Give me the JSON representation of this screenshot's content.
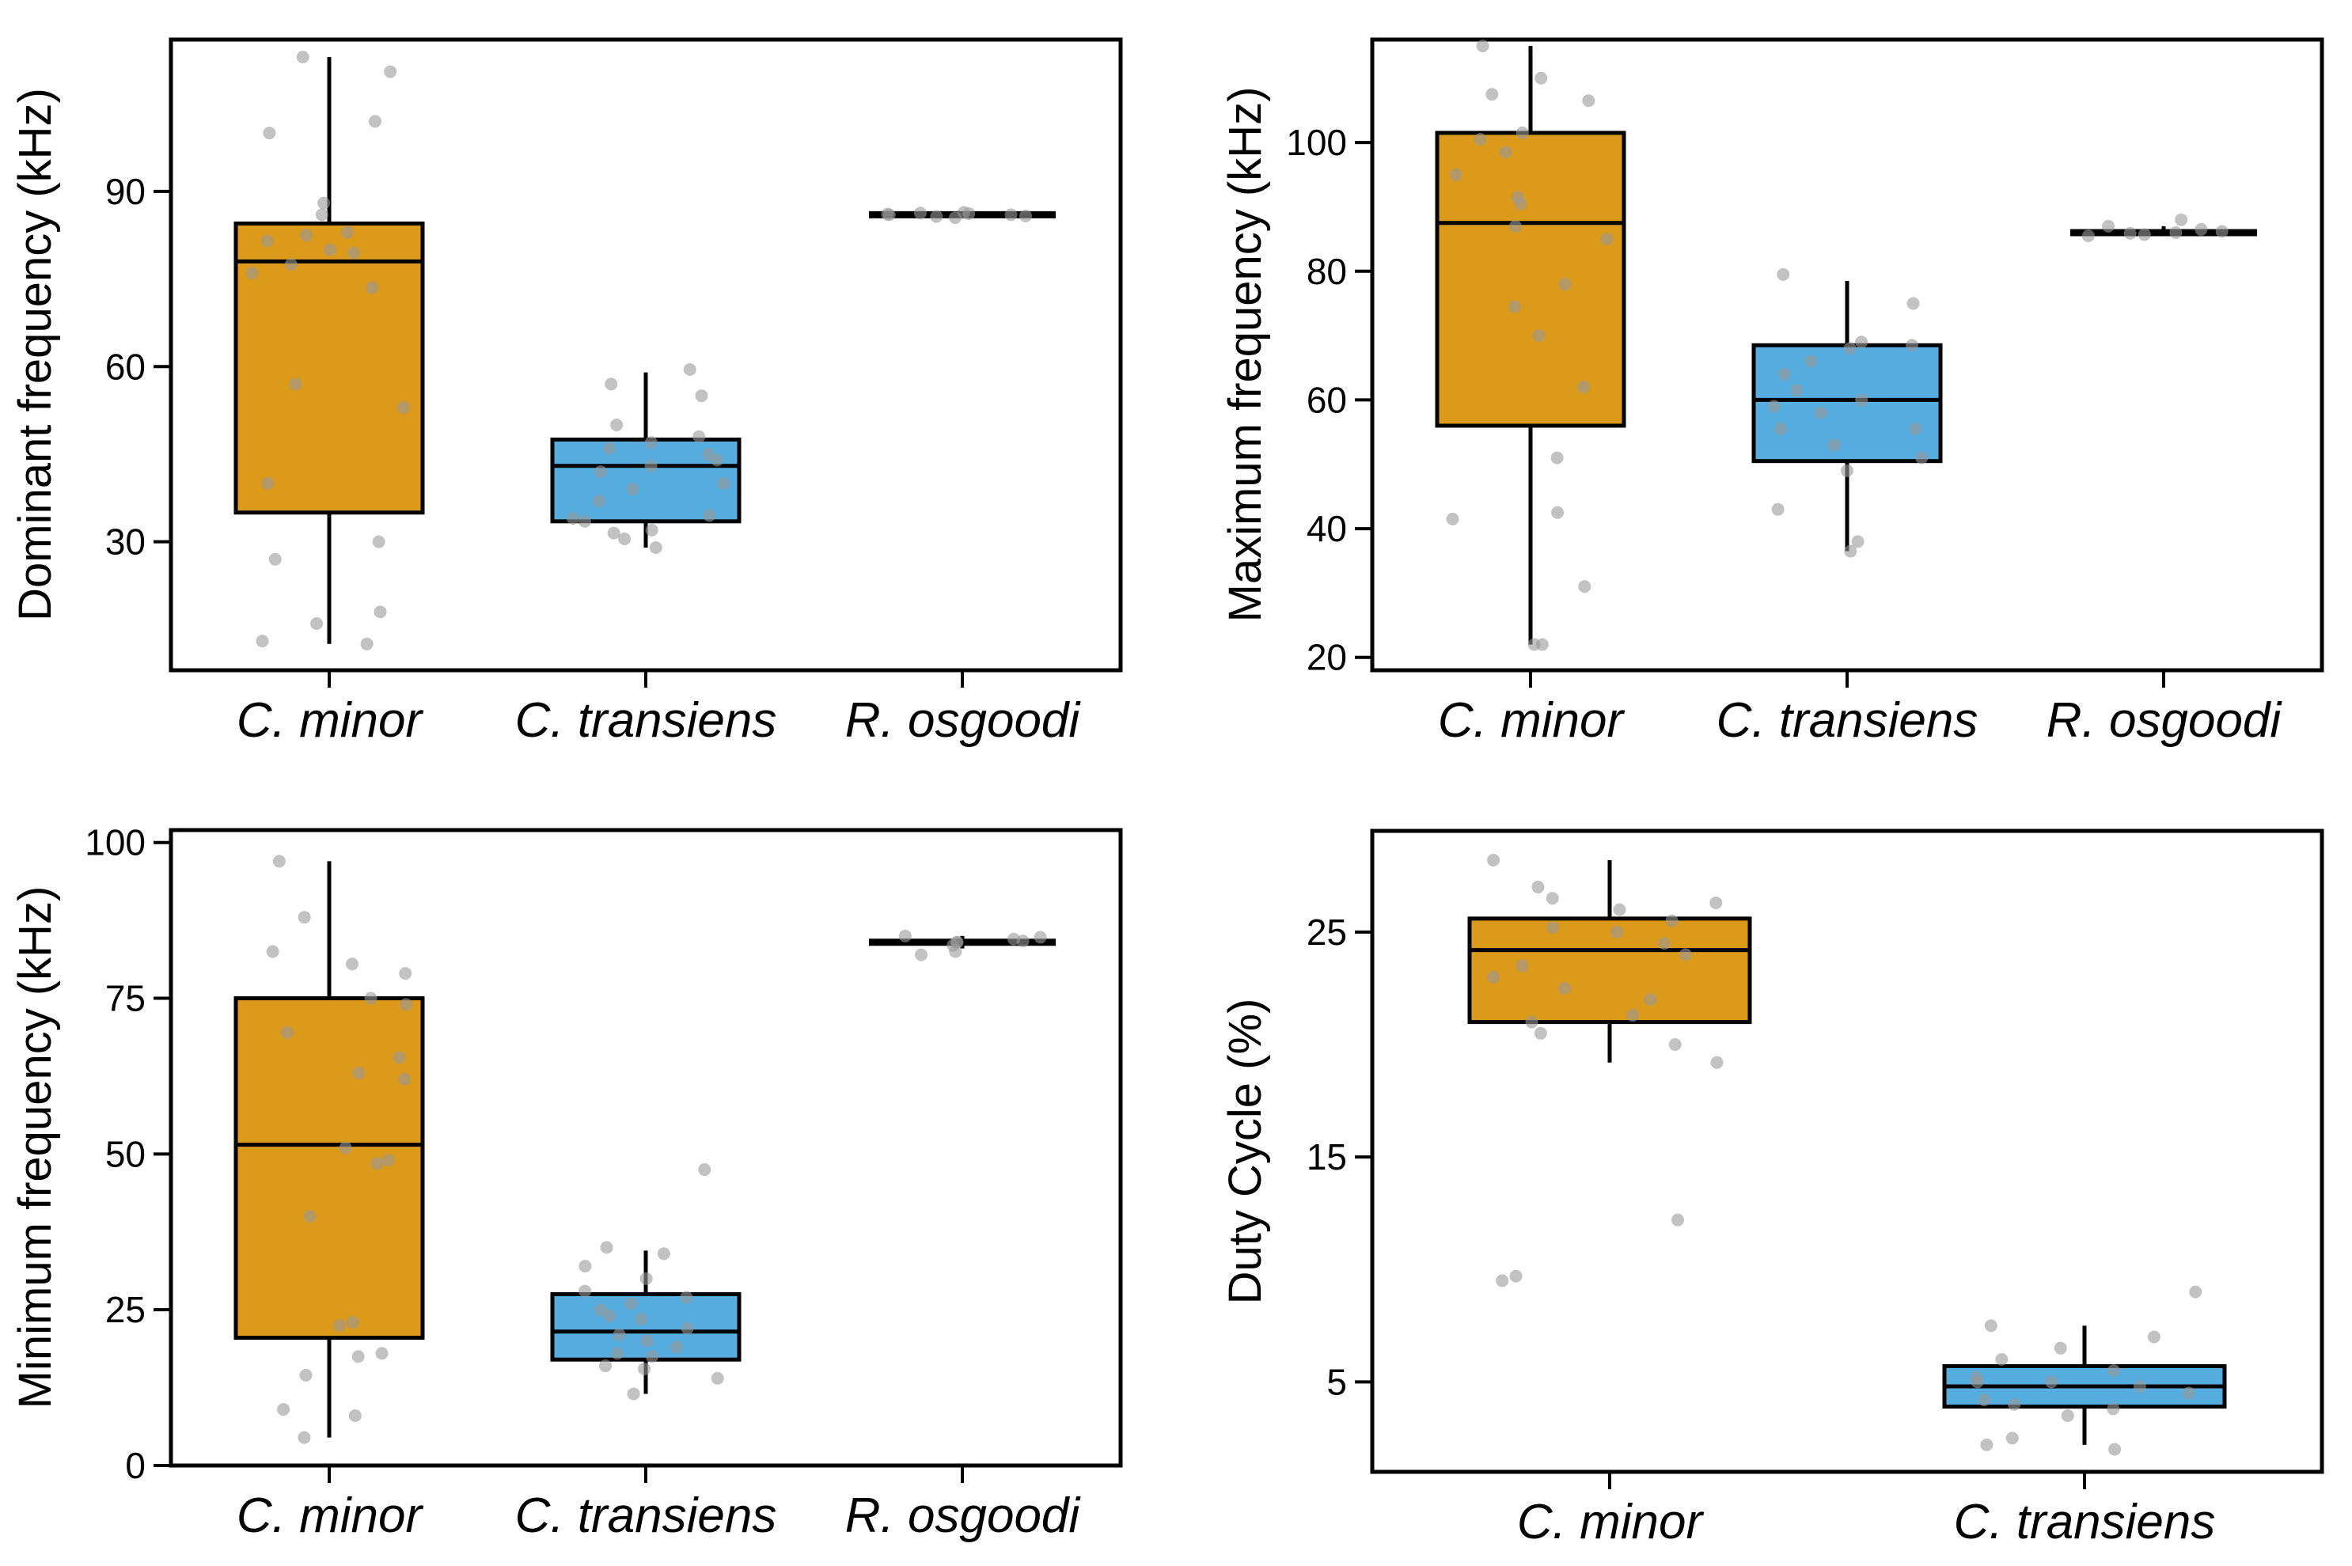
{
  "colors": {
    "orange": "#DB9A1A",
    "blue": "#56ADDF",
    "points": "#9A9A9A"
  },
  "chart_data": [
    {
      "type": "boxplot",
      "ylabel": "Dominant frequency (kHz)",
      "ylim": [
        8,
        116
      ],
      "yticks": [
        30,
        60,
        90
      ],
      "categories": [
        "C. minor",
        "C. transiens",
        "R. osgoodi"
      ],
      "boxes": [
        {
          "name": "C. minor",
          "color": "orange",
          "q1": 35,
          "median": 78,
          "q3": 84.5,
          "whisker_low": 12.5,
          "whisker_high": 113,
          "points": [
            12.5,
            13,
            16,
            18,
            27,
            30,
            40,
            53,
            57,
            73.5,
            76,
            77.5,
            79.5,
            80,
            81.5,
            82.5,
            83,
            86,
            88,
            100,
            102,
            110.5,
            113
          ]
        },
        {
          "name": "C. transiens",
          "color": "blue",
          "q1": 33.5,
          "median": 43,
          "q3": 47.5,
          "whisker_low": 29,
          "whisker_high": 59,
          "points": [
            29,
            30.5,
            31.5,
            32,
            33.5,
            34,
            34.5,
            37,
            39,
            40,
            42,
            43,
            44,
            45,
            46,
            47,
            48,
            50,
            55,
            57,
            59.5
          ]
        },
        {
          "name": "R. osgoodi",
          "color": "none",
          "q1": 85.6,
          "median": 86,
          "q3": 86.4,
          "whisker_low": 85.5,
          "whisker_high": 86.5,
          "points": [
            85.5,
            85.7,
            85.8,
            86,
            86,
            86.1,
            86.2,
            86.3,
            86.4
          ]
        }
      ]
    },
    {
      "type": "boxplot",
      "ylabel": "Maximum frequency (kHz)",
      "ylim": [
        18,
        116
      ],
      "yticks": [
        20,
        40,
        60,
        80,
        100
      ],
      "categories": [
        "C. minor",
        "C. transiens",
        "R. osgoodi"
      ],
      "boxes": [
        {
          "name": "C. minor",
          "color": "orange",
          "q1": 56,
          "median": 87.5,
          "q3": 101.5,
          "whisker_low": 22,
          "whisker_high": 115,
          "points": [
            22,
            22,
            31,
            41.5,
            42.5,
            51,
            62,
            70,
            74.5,
            78,
            85,
            87,
            90.5,
            91.5,
            95,
            98.5,
            100.5,
            101.5,
            106.5,
            107.5,
            110,
            115
          ]
        },
        {
          "name": "C. transiens",
          "color": "blue",
          "q1": 50.5,
          "median": 60,
          "q3": 68.5,
          "whisker_low": 36.5,
          "whisker_high": 78.5,
          "points": [
            36.5,
            38,
            43,
            49,
            51,
            53,
            55.5,
            55.5,
            58,
            59,
            60,
            61.5,
            64,
            66,
            68,
            68.5,
            69,
            75,
            79.5
          ]
        },
        {
          "name": "R. osgoodi",
          "color": "none",
          "q1": 85.6,
          "median": 86,
          "q3": 86.4,
          "whisker_low": 85.5,
          "whisker_high": 87,
          "points": [
            85.5,
            85.7,
            85.9,
            86,
            86.2,
            86.5,
            87,
            88
          ]
        }
      ]
    },
    {
      "type": "boxplot",
      "ylabel": "Minimum frequency (kHz)",
      "ylim": [
        0,
        102
      ],
      "yticks": [
        0,
        25,
        50,
        75,
        100
      ],
      "categories": [
        "C. minor",
        "C. transiens",
        "R. osgoodi"
      ],
      "boxes": [
        {
          "name": "C. minor",
          "color": "orange",
          "q1": 20.5,
          "median": 51.5,
          "q3": 75,
          "whisker_low": 4.5,
          "whisker_high": 97,
          "points": [
            4.5,
            8,
            9,
            14.5,
            17.5,
            18,
            22.5,
            23,
            40,
            48.5,
            49,
            51,
            62,
            63,
            65.5,
            69.5,
            74,
            75,
            79,
            80.5,
            82.5,
            88,
            97
          ]
        },
        {
          "name": "C. transiens",
          "color": "blue",
          "q1": 17,
          "median": 21.5,
          "q3": 27.5,
          "whisker_low": 11.5,
          "whisker_high": 34.5,
          "points": [
            11.5,
            14,
            15.5,
            16,
            17.5,
            18,
            19,
            20,
            21,
            22,
            23.5,
            24,
            25,
            26,
            27,
            28,
            30,
            32,
            34,
            35,
            47.5
          ]
        },
        {
          "name": "R. osgoodi",
          "color": "none",
          "q1": 83.6,
          "median": 84,
          "q3": 84.4,
          "whisker_low": 83,
          "whisker_high": 85,
          "points": [
            82,
            82.5,
            83.5,
            84,
            84,
            84.2,
            84.5,
            84.8,
            85
          ]
        }
      ]
    },
    {
      "type": "boxplot",
      "ylabel": "Duty Cycle (%)",
      "ylim": [
        1,
        29.5
      ],
      "yticks": [
        5,
        15,
        25
      ],
      "categories": [
        "C. minor",
        "C. transiens"
      ],
      "boxes": [
        {
          "name": "C. minor",
          "color": "orange",
          "q1": 21,
          "median": 24.2,
          "q3": 25.6,
          "whisker_low": 19.2,
          "whisker_high": 28.2,
          "points": [
            9.5,
            9.7,
            12.2,
            19.2,
            20,
            20.5,
            21,
            21.3,
            22,
            22.5,
            23,
            23.5,
            24,
            24.5,
            25,
            25.2,
            25.5,
            26,
            26.3,
            26.5,
            27,
            28.2
          ]
        },
        {
          "name": "C. transiens",
          "color": "blue",
          "q1": 3.9,
          "median": 4.8,
          "q3": 5.7,
          "whisker_low": 2.2,
          "whisker_high": 7.5,
          "points": [
            2,
            2.2,
            2.5,
            3.5,
            3.8,
            4,
            4.2,
            4.5,
            4.8,
            5,
            5,
            5.2,
            5.5,
            6,
            6.5,
            7,
            7.5,
            9
          ]
        }
      ]
    }
  ]
}
